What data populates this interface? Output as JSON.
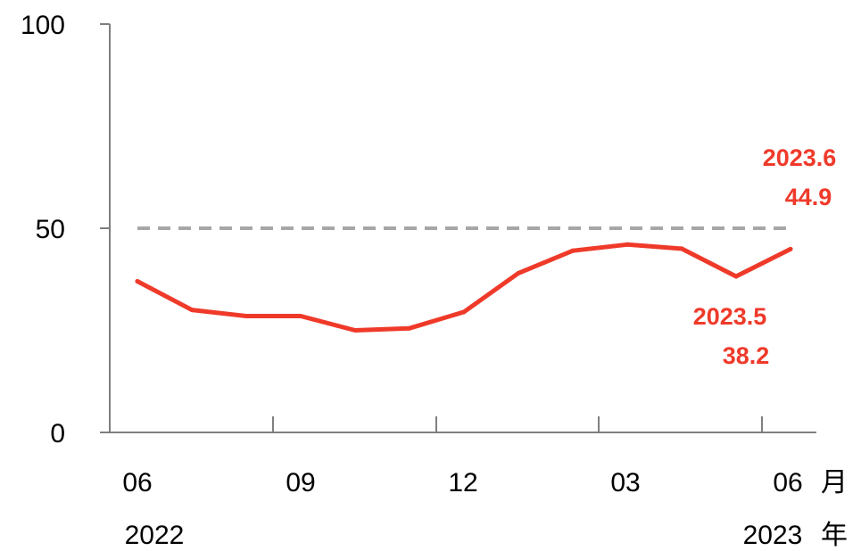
{
  "chart_data": {
    "type": "line",
    "title": "",
    "xlabel": "",
    "ylabel": "",
    "ylim": [
      0,
      100
    ],
    "y_ticks": [
      "0",
      "50",
      "100"
    ],
    "x": [
      "2022-06",
      "2022-07",
      "2022-08",
      "2022-09",
      "2022-10",
      "2022-11",
      "2022-12",
      "2023-01",
      "2023-02",
      "2023-03",
      "2023-04",
      "2023-05",
      "2023-06"
    ],
    "x_tick_labels": [
      "06",
      "09",
      "12",
      "03",
      "06"
    ],
    "month_unit": "月",
    "year_labels": [
      "2022",
      "2023"
    ],
    "year_unit": "年",
    "reference_line": {
      "value": 50,
      "style": "dashed",
      "color": "#a6a6a6"
    },
    "series": [
      {
        "values": [
          37.0,
          30.0,
          28.5,
          28.5,
          25.0,
          25.5,
          29.5,
          39.0,
          44.5,
          46.0,
          45.0,
          38.2,
          44.9
        ],
        "color": "#ef3a2a"
      }
    ],
    "annotations": [
      {
        "label": "2023.6",
        "value": "44.9",
        "point_index": 12
      },
      {
        "label": "2023.5",
        "value": "38.2",
        "point_index": 11
      }
    ],
    "grid": false,
    "legend": "none"
  }
}
